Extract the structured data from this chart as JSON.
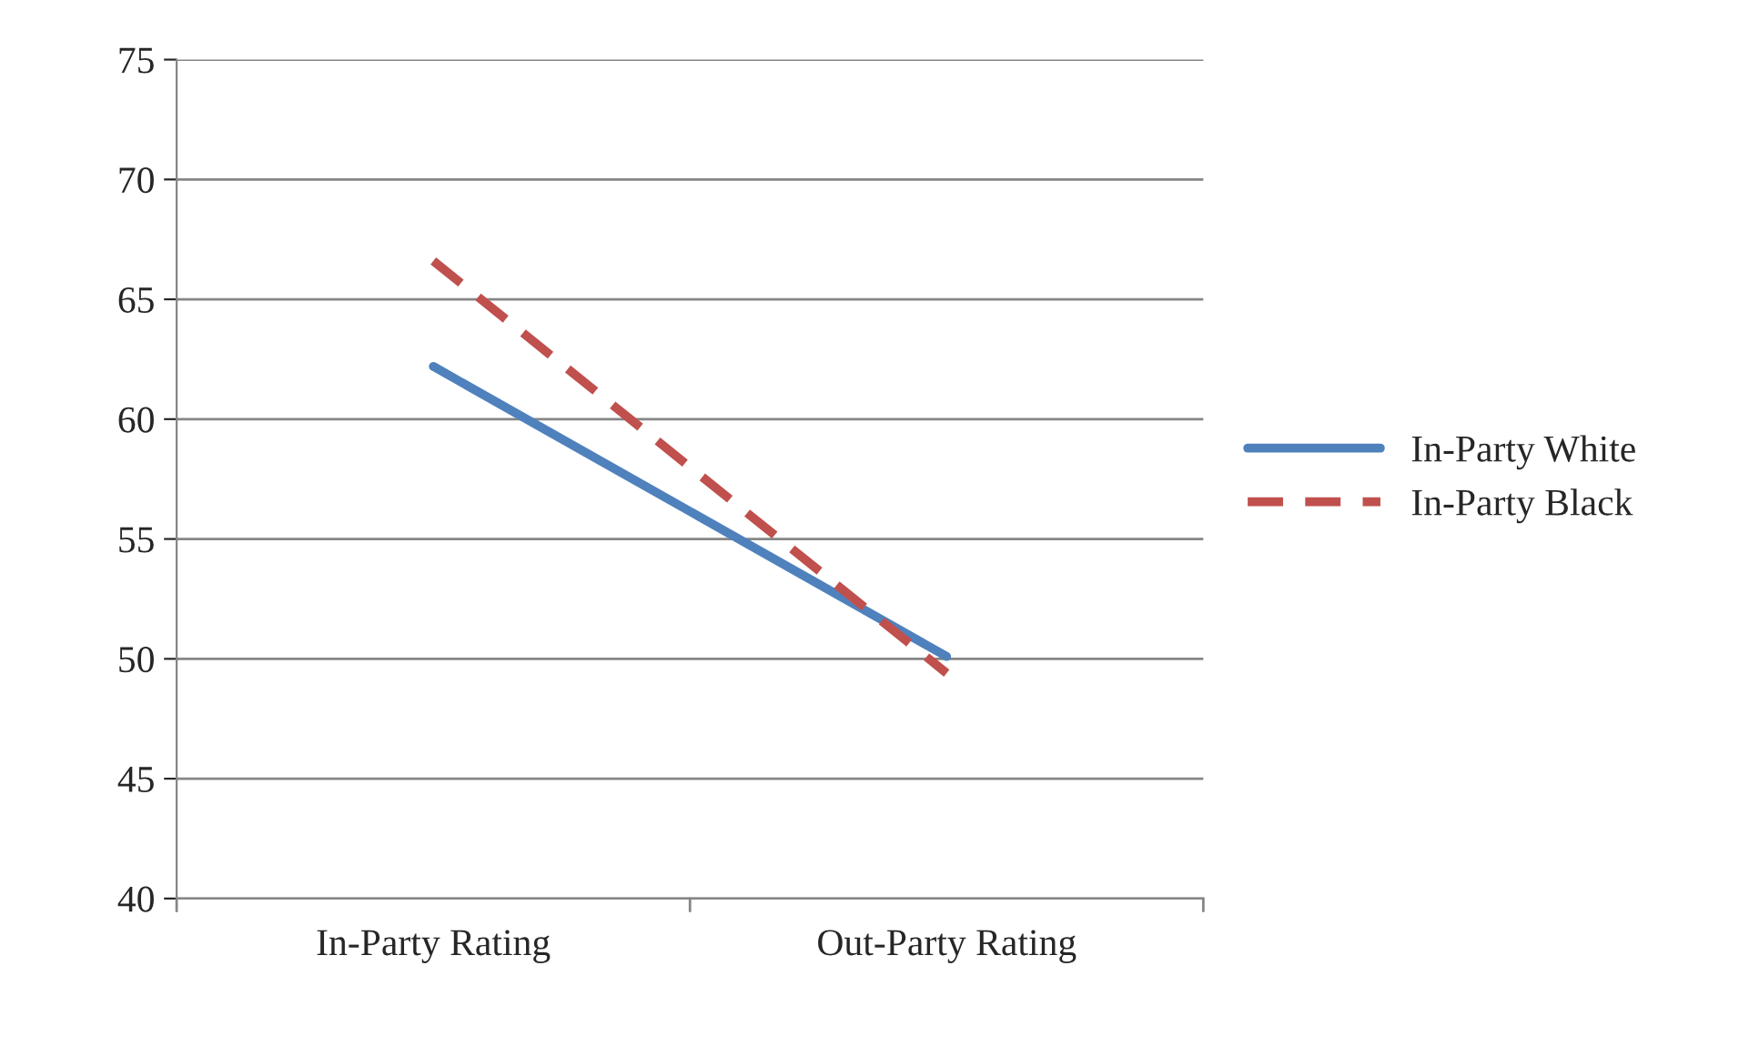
{
  "chart_data": {
    "type": "line",
    "categories": [
      "In-Party Rating",
      "Out-Party Rating"
    ],
    "series": [
      {
        "name": "In-Party White",
        "color": "#4f81bd",
        "values": [
          62.2,
          50.1
        ],
        "line_style": "solid"
      },
      {
        "name": "In-Party Black",
        "color": "#c0504d",
        "values": [
          66.6,
          49.4
        ],
        "line_style": "dashed"
      }
    ],
    "ylim": [
      40,
      75
    ],
    "yticks": [
      40,
      45,
      50,
      55,
      60,
      65,
      70,
      75
    ],
    "grid": "y",
    "legend": "right"
  }
}
